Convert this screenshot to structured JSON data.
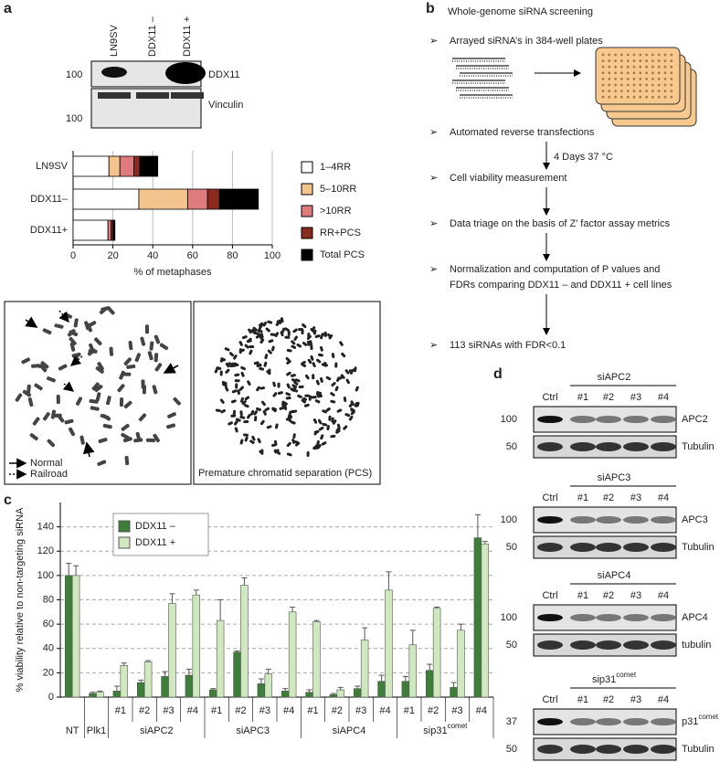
{
  "panel_labels": [
    "a",
    "b",
    "c",
    "d"
  ],
  "panel_a": {
    "lanes": [
      "LN9SV",
      "DDX11 –",
      "DDX11 +"
    ],
    "blots": [
      {
        "marker": "100",
        "label": "DDX11"
      },
      {
        "marker": "100",
        "label": "Vinculin"
      }
    ],
    "micrograph_legend": [
      "Normal",
      "Railroad"
    ],
    "micrograph_caption": "Premature chromatid separation (PCS)"
  },
  "panel_b": {
    "title": "Whole-genome siRNA screening",
    "steps": [
      "Arrayed siRNA’s in 384-well plates",
      "Automated reverse transfections",
      "Cell viability measurement",
      "Data triage on the basis of Z′ factor assay metrics",
      [
        "Normalization and computation of P values and",
        "FDRs comparing DDX11 – and DDX11 + cell lines"
      ],
      "113 siRNAs with FDR<0.1"
    ],
    "incubation": "4 Days 37 °C"
  },
  "panel_d": {
    "lanes": [
      "Ctrl",
      "#1",
      "#2",
      "#3",
      "#4"
    ],
    "blots": [
      {
        "group": "siAPC2",
        "target": "APC2",
        "target_marker": "100",
        "loading": "Tubulin",
        "loading_marker": "50"
      },
      {
        "group": "siAPC3",
        "target": "APC3",
        "target_marker": "100",
        "loading": "Tubulin",
        "loading_marker": "50"
      },
      {
        "group": "siAPC4",
        "target": "APC4",
        "target_marker": "100",
        "loading": "tubulin",
        "loading_marker": "50"
      },
      {
        "group": "sip31",
        "group_sup": "comet",
        "target": "p31",
        "target_sup": "comet",
        "target_marker": "37",
        "loading": "Tubulin",
        "loading_marker": "50"
      }
    ]
  },
  "chart_data": [
    {
      "type": "stacked_barh",
      "categories": [
        "LN9SV",
        "DDX11–",
        "DDX11+"
      ],
      "series": [
        {
          "name": "1–4RR",
          "color": "#ffffff",
          "values": [
            18,
            33,
            17.5
          ]
        },
        {
          "name": "5–10RR",
          "color": "#f4c48e",
          "values": [
            5.5,
            24.5,
            0
          ]
        },
        {
          "name": ">10RR",
          "color": "#dd7b7f",
          "values": [
            7,
            10,
            1.5
          ]
        },
        {
          "name": "RR+PCS",
          "color": "#8b2a1e",
          "values": [
            3,
            6,
            1
          ]
        },
        {
          "name": "Total PCS",
          "color": "#000000",
          "values": [
            9,
            19.5,
            1
          ]
        }
      ],
      "xlabel": "% of metaphases",
      "xlim": [
        0,
        100
      ],
      "xticks": [
        0,
        20,
        40,
        60,
        80,
        100
      ],
      "grid": true
    },
    {
      "type": "bar",
      "ylabel": "% viability relative to non-targeting siRNA",
      "categories": [
        "NT",
        "Plk1",
        "#1",
        "#2",
        "#3",
        "#4",
        "#1",
        "#2",
        "#3",
        "#4",
        "#1",
        "#2",
        "#3",
        "#4",
        "#1",
        "#2",
        "#3",
        "#4"
      ],
      "groups": [
        {
          "text": "siAPC2"
        },
        {
          "text": "siAPC3"
        },
        {
          "text": "siAPC4"
        },
        {
          "text": "sip31",
          "sup": "comet"
        }
      ],
      "series": [
        {
          "name": "DDX11 –",
          "color": "#3f7d3b",
          "values": [
            100,
            3,
            5,
            12,
            17,
            18,
            6,
            37,
            11,
            5,
            4,
            2,
            7,
            13,
            13,
            22,
            8,
            131
          ],
          "errors": [
            10,
            1,
            4,
            2,
            4,
            5,
            1,
            1,
            4,
            2,
            2,
            1,
            2,
            5,
            4,
            5,
            4,
            19
          ]
        },
        {
          "name": "DDX11 +",
          "color": "#cfe8bf",
          "values": [
            100,
            4,
            26,
            29,
            77,
            84,
            63,
            92,
            19,
            70,
            62,
            6,
            47,
            88,
            43,
            73,
            55,
            126
          ],
          "errors": [
            8,
            1,
            2,
            1,
            8,
            4,
            17,
            6,
            4,
            4,
            1,
            2,
            10,
            15,
            12,
            1,
            5,
            2
          ]
        }
      ],
      "ylim": [
        0,
        160
      ],
      "yticks": [
        0,
        20,
        40,
        60,
        80,
        100,
        120,
        140
      ],
      "grid": true,
      "legend": "upper left"
    }
  ]
}
